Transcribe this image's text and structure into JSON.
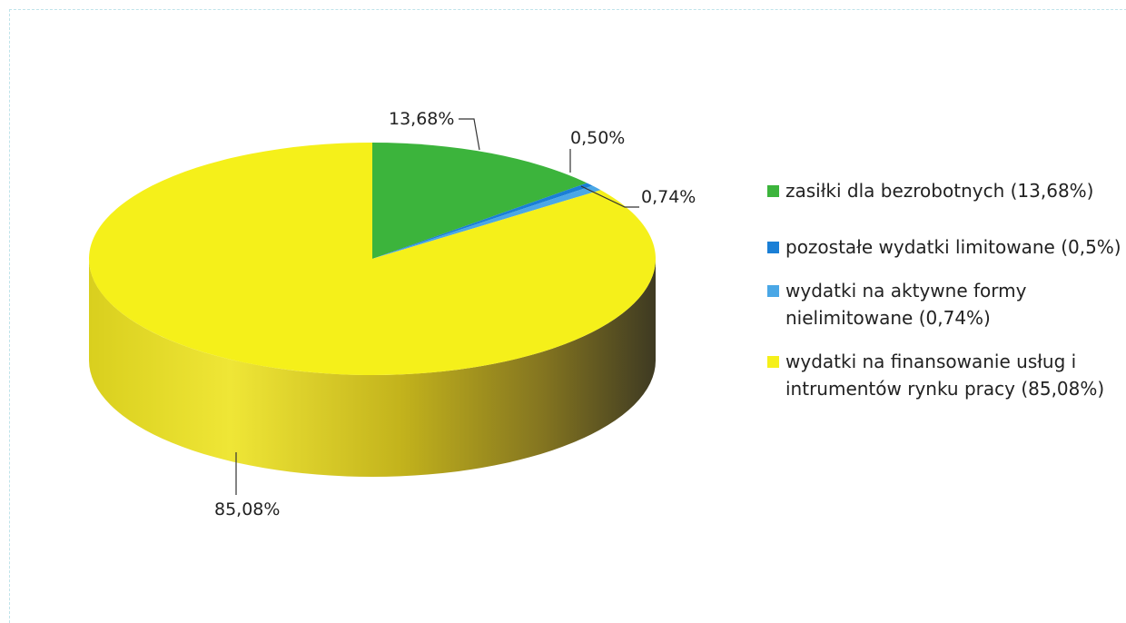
{
  "chart_data": {
    "type": "pie",
    "title": "",
    "slices": [
      {
        "label": "zasiłki dla bezrobotnych (13,68%)",
        "value": 13.68,
        "data_label": "13,68%",
        "color": "#3cb43c"
      },
      {
        "label": "pozostałe wydatki limitowane (0,5%)",
        "value": 0.5,
        "data_label": "0,50%",
        "color": "#1a7fd6"
      },
      {
        "label": "wydatki na aktywne formy nielimitowane (0,74%)",
        "value": 0.74,
        "data_label": "0,74%",
        "color": "#4aa7e6"
      },
      {
        "label": "wydatki na finansowanie usług i intrumentów rynku pracy (85,08%)",
        "value": 85.08,
        "data_label": "85,08%",
        "color": "#f5f01a"
      }
    ],
    "legend_position": "right",
    "style": "3d"
  }
}
